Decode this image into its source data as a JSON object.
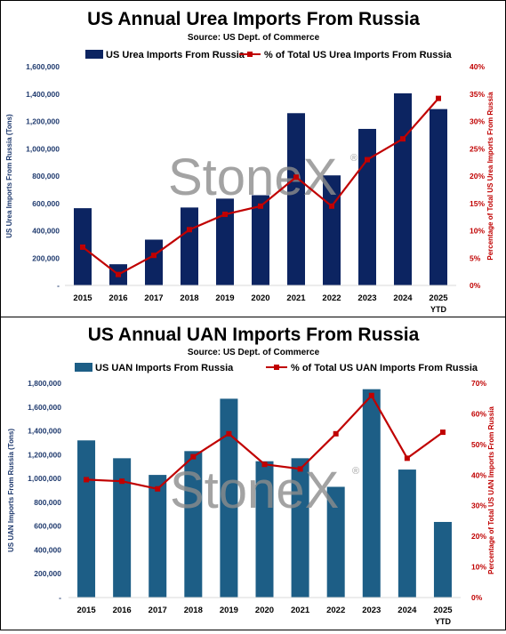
{
  "colors": {
    "axis_left_text": "#1f3a6e",
    "axis_right_text": "#c00000",
    "watermark": "#8c8c8c"
  },
  "watermark": {
    "text": "StoneX",
    "mark": "®"
  },
  "chart_data": [
    {
      "type": "bar+line",
      "title": "US Annual Urea Imports From Russia",
      "subtitle": "Source: US Dept. of Commerce",
      "categories": [
        "2015",
        "2016",
        "2017",
        "2018",
        "2019",
        "2020",
        "2021",
        "2022",
        "2023",
        "2024",
        "2025"
      ],
      "category_sublabels": [
        "",
        "",
        "",
        "",
        "",
        "",
        "",
        "",
        "",
        "",
        "YTD"
      ],
      "series": [
        {
          "name": "US Urea Imports From Russia",
          "type": "bar",
          "axis": "left",
          "color": "#0c2461",
          "values": [
            565000,
            155000,
            335000,
            570000,
            635000,
            660000,
            1260000,
            805000,
            1145000,
            1405000,
            1290000
          ]
        },
        {
          "name": "% of Total US Urea Imports From Russia",
          "type": "line",
          "axis": "right",
          "color": "#c00000",
          "values": [
            7.0,
            2.0,
            5.5,
            10.2,
            13.0,
            14.5,
            19.8,
            14.5,
            23.0,
            26.8,
            34.2
          ]
        }
      ],
      "ylabel": "US Urea Imports From Russia (Tons)",
      "y2label": "Percentage of Total US Urea Imports From Russia",
      "ylim": [
        0,
        1600000
      ],
      "yticks": [
        "-",
        "200,000",
        "400,000",
        "600,000",
        "800,000",
        "1,000,000",
        "1,200,000",
        "1,400,000",
        "1,600,000"
      ],
      "y2lim": [
        0,
        40
      ],
      "y2ticks": [
        "0%",
        "5%",
        "10%",
        "15%",
        "20%",
        "25%",
        "30%",
        "35%",
        "40%"
      ],
      "legend": "top"
    },
    {
      "type": "bar+line",
      "title": "US Annual UAN Imports From Russia",
      "subtitle": "Source: US Dept. of Commerce",
      "categories": [
        "2015",
        "2016",
        "2017",
        "2018",
        "2019",
        "2020",
        "2021",
        "2022",
        "2023",
        "2024",
        "2025"
      ],
      "category_sublabels": [
        "",
        "",
        "",
        "",
        "",
        "",
        "",
        "",
        "",
        "",
        "YTD"
      ],
      "series": [
        {
          "name": "US UAN Imports From Russia",
          "type": "bar",
          "axis": "left",
          "color": "#1d5e86",
          "values": [
            1320000,
            1170000,
            1030000,
            1230000,
            1670000,
            1145000,
            1170000,
            930000,
            1750000,
            1075000,
            635000
          ]
        },
        {
          "name": "% of Total US UAN Imports From Russia",
          "type": "line",
          "axis": "right",
          "color": "#c00000",
          "values": [
            38.5,
            38.0,
            35.5,
            46.0,
            53.5,
            43.5,
            42.0,
            53.5,
            66.0,
            45.5,
            54.0
          ]
        }
      ],
      "ylabel": "US UAN Imports From Russia (Tons)",
      "y2label": "Percentage of Total US UAN Imports From Russia",
      "ylim": [
        0,
        1800000
      ],
      "yticks": [
        "-",
        "200,000",
        "400,000",
        "600,000",
        "800,000",
        "1,000,000",
        "1,200,000",
        "1,400,000",
        "1,600,000",
        "1,800,000"
      ],
      "y2lim": [
        0,
        70
      ],
      "y2ticks": [
        "0%",
        "10%",
        "20%",
        "30%",
        "40%",
        "50%",
        "60%",
        "70%"
      ],
      "legend": "top"
    }
  ]
}
